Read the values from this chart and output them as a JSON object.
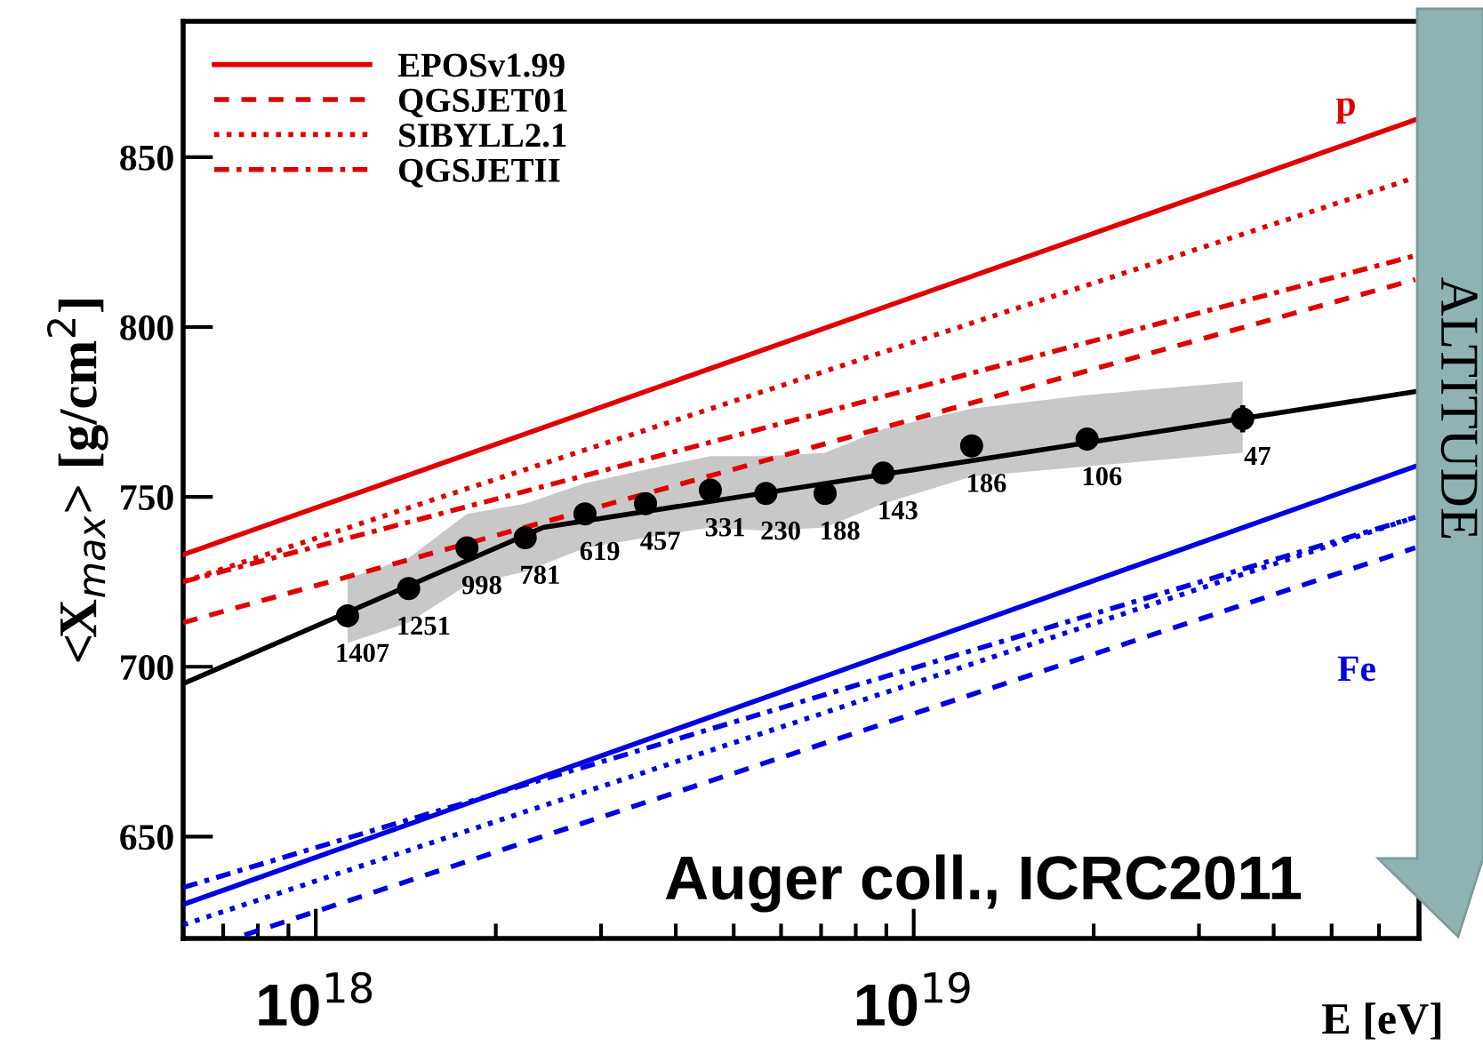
{
  "chart_data": {
    "type": "line",
    "xlabel": "E [eV]",
    "ylabel": "<X$_{max}$> [g/cm$^{2}$]",
    "log": "x",
    "xlim": [
      6e+17,
      7e+19
    ],
    "ylim": [
      620,
      890
    ],
    "xticks": [
      {
        "value": 1e+18,
        "label": "10$^{18}$"
      },
      {
        "value": 1e+19,
        "label": "10$^{19}$"
      }
    ],
    "yticks": [
      650,
      700,
      750,
      800,
      850
    ],
    "legend": "top left",
    "grid": false,
    "annotations": [
      {
        "text": "1407",
        "x": 1.13e+18,
        "y": 715
      },
      {
        "text": "1251",
        "x": 1.43e+18,
        "y": 723
      },
      {
        "text": "998",
        "x": 1.79e+18,
        "y": 735
      },
      {
        "text": "781",
        "x": 2.24e+18,
        "y": 738
      },
      {
        "text": "619",
        "x": 2.82e+18,
        "y": 745
      },
      {
        "text": "457",
        "x": 3.56e+18,
        "y": 748
      },
      {
        "text": "331",
        "x": 4.57e+18,
        "y": 752
      },
      {
        "text": "230",
        "x": 5.66e+18,
        "y": 751
      },
      {
        "text": "188",
        "x": 7.11e+18,
        "y": 751
      },
      {
        "text": "143",
        "x": 8.89e+18,
        "y": 757
      },
      {
        "text": "186",
        "x": 1.25e+19,
        "y": 765
      },
      {
        "text": "106",
        "x": 1.95e+19,
        "y": 767
      },
      {
        "text": "47",
        "x": 3.55e+19,
        "y": 773
      },
      "p",
      "Fe",
      "Auger coll., ICRC2011",
      "ALTITUDE"
    ],
    "series": [
      {
        "type": "scatter",
        "color": "#000000",
        "marker": "circle",
        "x": [
          1.13e+18,
          1.43e+18,
          1.79e+18,
          2.24e+18,
          2.82e+18,
          3.56e+18,
          4.57e+18,
          5.66e+18,
          7.11e+18,
          8.89e+18,
          1.25e+19,
          1.95e+19,
          3.55e+19
        ],
        "values": [
          715,
          723,
          735,
          738,
          745,
          748,
          752,
          751,
          751,
          757,
          765,
          767,
          773
        ],
        "errors": [
          null,
          null,
          null,
          null,
          null,
          null,
          null,
          null,
          null,
          null,
          null,
          null,
          4
        ],
        "lower": [
          707,
          713,
          724,
          728,
          735,
          738,
          741,
          740,
          741,
          748,
          756,
          759,
          763
        ],
        "upper": [
          726,
          732,
          745,
          748,
          754,
          758,
          762,
          762,
          763,
          770,
          776,
          780,
          784
        ]
      },
      {
        "color": "#000000",
        "line_style": "solid",
        "x": [
          6e+17,
          2.4e+18,
          6.9e+19
        ],
        "values": [
          695,
          741,
          781
        ]
      },
      {
        "name": "EPOSv1.99",
        "color": "#e00000",
        "line_style": "solid",
        "x": [
          6e+17,
          6.9e+19
        ],
        "values": [
          733,
          861
        ]
      },
      {
        "name": "QGSJET01",
        "color": "#e00000",
        "line_style": "dashed",
        "x": [
          6e+17,
          6.9e+19
        ],
        "values": [
          713,
          814
        ]
      },
      {
        "name": "SIBYLL2.1",
        "color": "#e00000",
        "line_style": "dotted",
        "x": [
          6e+17,
          6.9e+19
        ],
        "values": [
          725,
          844
        ]
      },
      {
        "name": "QGSJETII",
        "color": "#e00000",
        "line_style": "dashdot",
        "x": [
          6e+17,
          6.9e+19
        ],
        "values": [
          725,
          821
        ]
      },
      {
        "color": "#0000e0",
        "line_style": "solid",
        "x": [
          6e+17,
          6.9e+19
        ],
        "values": [
          630,
          759
        ]
      },
      {
        "color": "#0000e0",
        "line_style": "dashed",
        "x": [
          7.6e+17,
          6.9e+19
        ],
        "values": [
          621,
          735
        ]
      },
      {
        "color": "#0000e0",
        "line_style": "dotted",
        "x": [
          6e+17,
          6.9e+19
        ],
        "values": [
          624,
          744
        ]
      },
      {
        "color": "#0000e0",
        "line_style": "dashdot",
        "x": [
          6e+17,
          6.9e+19
        ],
        "values": [
          635,
          744
        ]
      }
    ]
  }
}
